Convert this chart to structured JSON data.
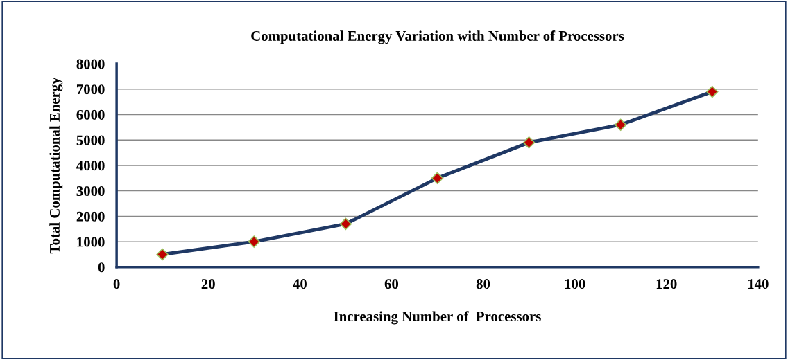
{
  "chart_data": {
    "type": "line",
    "title": "Computational Energy Variation with Number of Processors",
    "xlabel": "Increasing Number of  Processors",
    "ylabel": "Total Computational Energy",
    "x": [
      10,
      30,
      50,
      70,
      90,
      110,
      130
    ],
    "series": [
      {
        "color": "#1f3864",
        "values": [
          500,
          1000,
          1700,
          3500,
          4900,
          5600,
          6900
        ]
      }
    ],
    "xlim": [
      0,
      140
    ],
    "xticks": [
      0,
      20,
      40,
      60,
      80,
      100,
      120,
      140
    ],
    "ylim": [
      0,
      8000
    ],
    "yticks": [
      0,
      1000,
      2000,
      3000,
      4000,
      5000,
      6000,
      7000,
      8000
    ],
    "grid": "y",
    "marker": "diamond",
    "line_style": "solid"
  }
}
